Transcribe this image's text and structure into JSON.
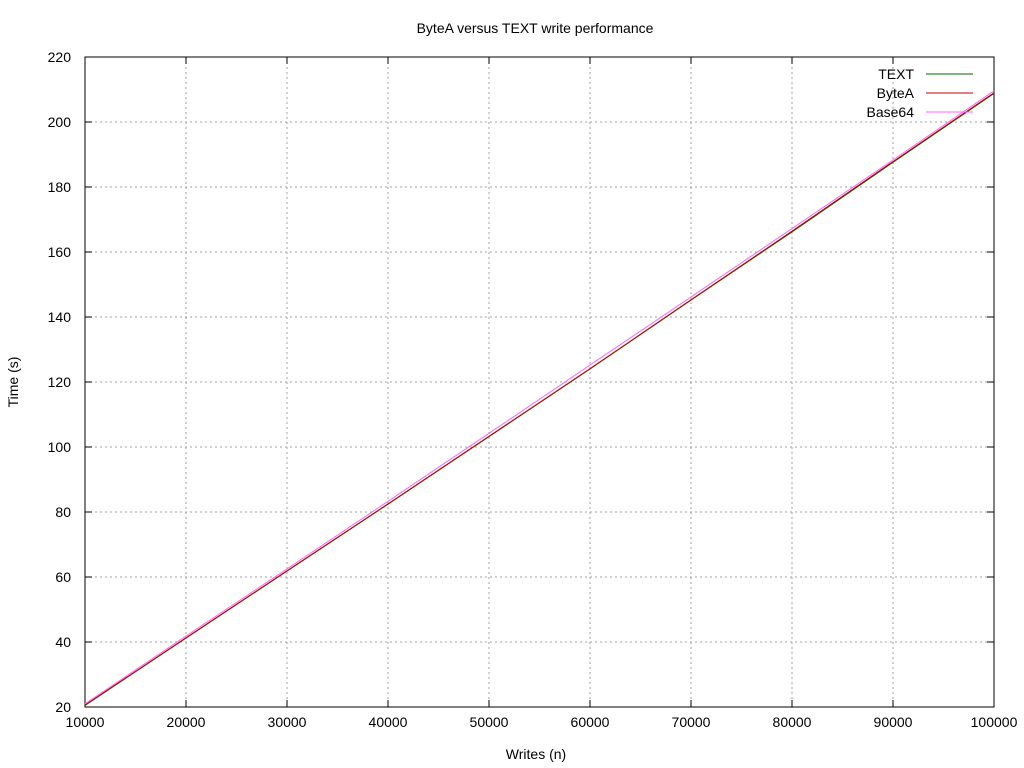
{
  "chart_data": {
    "type": "line",
    "title": "ByteA versus TEXT write performance",
    "xlabel": "Writes (n)",
    "ylabel": "Time (s)",
    "xlim": [
      10000,
      100000
    ],
    "ylim": [
      20,
      220
    ],
    "xticks": [
      "10000",
      "20000",
      "30000",
      "40000",
      "50000",
      "60000",
      "70000",
      "80000",
      "90000",
      "100000"
    ],
    "yticks": [
      "20",
      "40",
      "60",
      "80",
      "100",
      "120",
      "140",
      "160",
      "180",
      "200",
      "220"
    ],
    "grid": true,
    "legend_position": "top-right",
    "x": [
      10000,
      20000,
      30000,
      40000,
      50000,
      60000,
      70000,
      80000,
      90000,
      100000
    ],
    "series": [
      {
        "name": "TEXT",
        "color": "#006400",
        "values": [
          20.5,
          41.2,
          61.8,
          82.4,
          103.2,
          124.0,
          145.2,
          166.2,
          187.6,
          208.8
        ]
      },
      {
        "name": "ByteA",
        "color": "#c00000",
        "values": [
          20.6,
          41.3,
          61.9,
          82.5,
          103.3,
          124.1,
          145.3,
          166.4,
          187.8,
          209.0
        ]
      },
      {
        "name": "Base64",
        "color": "#ff66ff",
        "values": [
          21.0,
          41.8,
          62.5,
          83.3,
          104.2,
          125.2,
          146.2,
          167.2,
          188.3,
          209.6
        ]
      }
    ]
  }
}
